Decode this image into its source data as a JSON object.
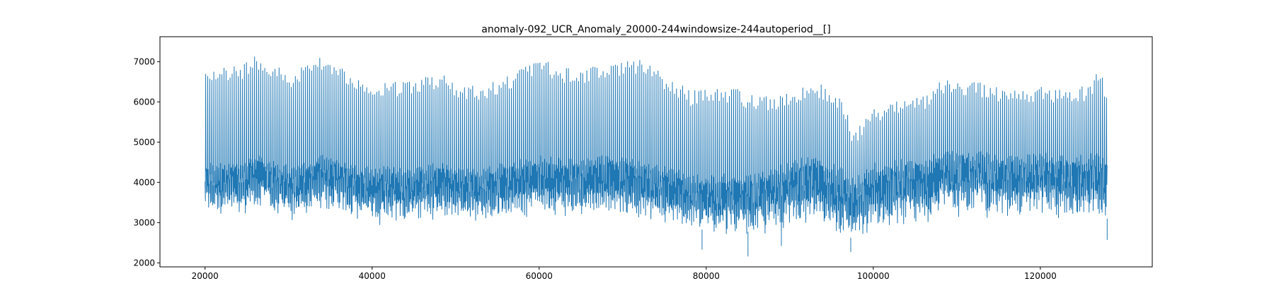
{
  "chart_data": {
    "type": "line",
    "title": "anomaly-092_UCR_Anomaly_20000-244windowsize-244autoperiod__[]",
    "xlabel": "",
    "ylabel": "",
    "xlim": [
      14600,
      133400
    ],
    "ylim": [
      1900,
      7620
    ],
    "x_ticks": [
      20000,
      40000,
      60000,
      80000,
      100000,
      120000
    ],
    "y_ticks": [
      2000,
      3000,
      4000,
      5000,
      6000,
      7000
    ],
    "grid": false,
    "color": "#1f77b4",
    "series": [
      {
        "x_start": 20000,
        "x_end": 128000,
        "period": 244,
        "upper_envelope": [
          [
            20000,
            6950
          ],
          [
            22000,
            6850
          ],
          [
            24000,
            6900
          ],
          [
            26000,
            7200
          ],
          [
            28000,
            6950
          ],
          [
            30000,
            6750
          ],
          [
            32000,
            6900
          ],
          [
            34000,
            7200
          ],
          [
            36000,
            6900
          ],
          [
            38000,
            6700
          ],
          [
            40000,
            6550
          ],
          [
            42000,
            6500
          ],
          [
            44000,
            6500
          ],
          [
            46000,
            6650
          ],
          [
            48000,
            6750
          ],
          [
            50000,
            6500
          ],
          [
            52000,
            6400
          ],
          [
            54000,
            6500
          ],
          [
            56000,
            6650
          ],
          [
            58000,
            6850
          ],
          [
            60000,
            7100
          ],
          [
            62000,
            6950
          ],
          [
            64000,
            6800
          ],
          [
            66000,
            6900
          ],
          [
            68000,
            7000
          ],
          [
            70000,
            7050
          ],
          [
            72000,
            7100
          ],
          [
            74000,
            6800
          ],
          [
            76000,
            6550
          ],
          [
            78000,
            6300
          ],
          [
            80000,
            6300
          ],
          [
            82000,
            6400
          ],
          [
            84000,
            6300
          ],
          [
            86000,
            6150
          ],
          [
            88000,
            6150
          ],
          [
            90000,
            6300
          ],
          [
            92000,
            6500
          ],
          [
            94000,
            6450
          ],
          [
            96000,
            6200
          ],
          [
            97500,
            5300
          ],
          [
            100000,
            5900
          ],
          [
            102000,
            5950
          ],
          [
            104000,
            6150
          ],
          [
            106000,
            6200
          ],
          [
            108000,
            6550
          ],
          [
            110000,
            6600
          ],
          [
            112000,
            6500
          ],
          [
            114000,
            6450
          ],
          [
            116000,
            6300
          ],
          [
            118000,
            6350
          ],
          [
            120000,
            6450
          ],
          [
            122000,
            6350
          ],
          [
            124000,
            6300
          ],
          [
            126000,
            6500
          ],
          [
            127000,
            6850
          ],
          [
            128000,
            6300
          ]
        ],
        "baseline_low": [
          [
            20000,
            3400
          ],
          [
            22000,
            3250
          ],
          [
            24000,
            3300
          ],
          [
            26000,
            3450
          ],
          [
            28000,
            3300
          ],
          [
            30000,
            3200
          ],
          [
            32000,
            3300
          ],
          [
            34000,
            3550
          ],
          [
            36000,
            3400
          ],
          [
            38000,
            3150
          ],
          [
            40000,
            3100
          ],
          [
            42000,
            3150
          ],
          [
            44000,
            3100
          ],
          [
            46000,
            3200
          ],
          [
            48000,
            3250
          ],
          [
            50000,
            3150
          ],
          [
            52000,
            3100
          ],
          [
            54000,
            3150
          ],
          [
            56000,
            3200
          ],
          [
            58000,
            3300
          ],
          [
            60000,
            3350
          ],
          [
            62000,
            3300
          ],
          [
            64000,
            3250
          ],
          [
            66000,
            3300
          ],
          [
            68000,
            3300
          ],
          [
            70000,
            3250
          ],
          [
            72000,
            3200
          ],
          [
            74000,
            3100
          ],
          [
            76000,
            3000
          ],
          [
            78000,
            2900
          ],
          [
            80000,
            2800
          ],
          [
            82000,
            2850
          ],
          [
            84000,
            2750
          ],
          [
            86000,
            2800
          ],
          [
            88000,
            2900
          ],
          [
            90000,
            3000
          ],
          [
            92000,
            3050
          ],
          [
            94000,
            2950
          ],
          [
            96000,
            2800
          ],
          [
            97500,
            2600
          ],
          [
            100000,
            2900
          ],
          [
            102000,
            3000
          ],
          [
            104000,
            3050
          ],
          [
            106000,
            3100
          ],
          [
            108000,
            3250
          ],
          [
            110000,
            3300
          ],
          [
            112000,
            3300
          ],
          [
            114000,
            3250
          ],
          [
            116000,
            3200
          ],
          [
            118000,
            3250
          ],
          [
            120000,
            3300
          ],
          [
            122000,
            3250
          ],
          [
            124000,
            3200
          ],
          [
            126000,
            3250
          ],
          [
            128000,
            3100
          ]
        ],
        "baseline_high": [
          [
            20000,
            4500
          ],
          [
            22000,
            4550
          ],
          [
            24000,
            4500
          ],
          [
            26000,
            4700
          ],
          [
            28000,
            4550
          ],
          [
            30000,
            4450
          ],
          [
            32000,
            4500
          ],
          [
            34000,
            4750
          ],
          [
            36000,
            4600
          ],
          [
            38000,
            4450
          ],
          [
            40000,
            4400
          ],
          [
            42000,
            4400
          ],
          [
            44000,
            4350
          ],
          [
            46000,
            4450
          ],
          [
            48000,
            4500
          ],
          [
            50000,
            4400
          ],
          [
            52000,
            4350
          ],
          [
            54000,
            4450
          ],
          [
            56000,
            4550
          ],
          [
            58000,
            4600
          ],
          [
            60000,
            4700
          ],
          [
            62000,
            4650
          ],
          [
            64000,
            4600
          ],
          [
            66000,
            4650
          ],
          [
            68000,
            4700
          ],
          [
            70000,
            4650
          ],
          [
            72000,
            4600
          ],
          [
            74000,
            4450
          ],
          [
            76000,
            4350
          ],
          [
            78000,
            4250
          ],
          [
            80000,
            4200
          ],
          [
            82000,
            4250
          ],
          [
            84000,
            4150
          ],
          [
            86000,
            4250
          ],
          [
            88000,
            4400
          ],
          [
            90000,
            4550
          ],
          [
            92000,
            4650
          ],
          [
            94000,
            4600
          ],
          [
            96000,
            4400
          ],
          [
            97500,
            4100
          ],
          [
            100000,
            4500
          ],
          [
            102000,
            4550
          ],
          [
            104000,
            4600
          ],
          [
            106000,
            4650
          ],
          [
            108000,
            4800
          ],
          [
            110000,
            4850
          ],
          [
            112000,
            4800
          ],
          [
            114000,
            4750
          ],
          [
            116000,
            4700
          ],
          [
            118000,
            4700
          ],
          [
            120000,
            4750
          ],
          [
            122000,
            4700
          ],
          [
            124000,
            4650
          ],
          [
            126000,
            4750
          ],
          [
            128000,
            4700
          ]
        ],
        "min_points": [
          [
            79500,
            2330
          ],
          [
            85000,
            2160
          ],
          [
            89000,
            2420
          ],
          [
            97300,
            2270
          ],
          [
            128000,
            2570
          ]
        ]
      }
    ]
  }
}
